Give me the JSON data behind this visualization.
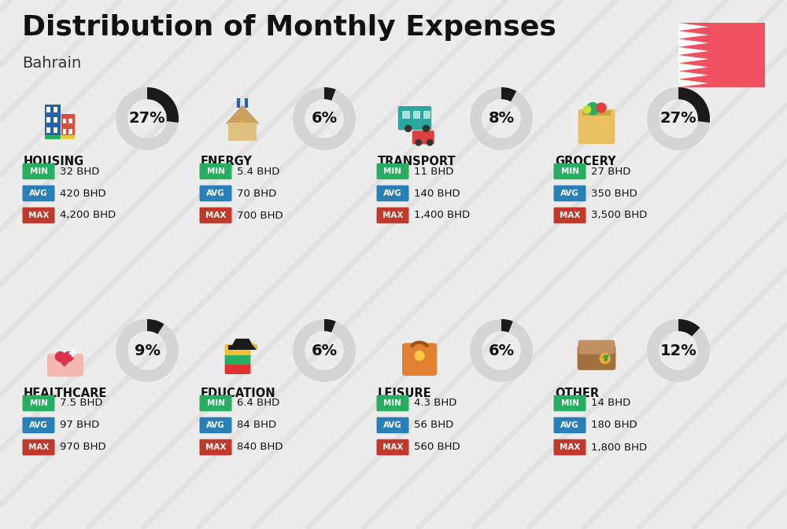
{
  "title": "Distribution of Monthly Expenses",
  "subtitle": "Bahrain",
  "background_color": "#ececec",
  "categories": [
    {
      "name": "HOUSING",
      "pct": 27,
      "min_val": "32 BHD",
      "avg_val": "420 BHD",
      "max_val": "4,200 BHD",
      "col": 0,
      "row": 0,
      "icon": "housing"
    },
    {
      "name": "ENERGY",
      "pct": 6,
      "min_val": "5.4 BHD",
      "avg_val": "70 BHD",
      "max_val": "700 BHD",
      "col": 1,
      "row": 0,
      "icon": "energy"
    },
    {
      "name": "TRANSPORT",
      "pct": 8,
      "min_val": "11 BHD",
      "avg_val": "140 BHD",
      "max_val": "1,400 BHD",
      "col": 2,
      "row": 0,
      "icon": "transport"
    },
    {
      "name": "GROCERY",
      "pct": 27,
      "min_val": "27 BHD",
      "avg_val": "350 BHD",
      "max_val": "3,500 BHD",
      "col": 3,
      "row": 0,
      "icon": "grocery"
    },
    {
      "name": "HEALTHCARE",
      "pct": 9,
      "min_val": "7.5 BHD",
      "avg_val": "97 BHD",
      "max_val": "970 BHD",
      "col": 0,
      "row": 1,
      "icon": "healthcare"
    },
    {
      "name": "EDUCATION",
      "pct": 6,
      "min_val": "6.4 BHD",
      "avg_val": "84 BHD",
      "max_val": "840 BHD",
      "col": 1,
      "row": 1,
      "icon": "education"
    },
    {
      "name": "LEISURE",
      "pct": 6,
      "min_val": "4.3 BHD",
      "avg_val": "56 BHD",
      "max_val": "560 BHD",
      "col": 2,
      "row": 1,
      "icon": "leisure"
    },
    {
      "name": "OTHER",
      "pct": 12,
      "min_val": "14 BHD",
      "avg_val": "180 BHD",
      "max_val": "1,800 BHD",
      "col": 3,
      "row": 1,
      "icon": "other"
    }
  ],
  "min_color": "#27ae60",
  "avg_color": "#2980b9",
  "max_color": "#c0392b",
  "circle_bg": "#d5d5d5",
  "circle_fg": "#1a1a1a",
  "title_fontsize": 26,
  "subtitle_fontsize": 14,
  "cat_fontsize": 10.5,
  "val_fontsize": 9.5,
  "pct_fontsize": 14,
  "flag_red": "#f05060",
  "stripe_color": "#d8d8d8",
  "stripe_alpha": 0.5
}
